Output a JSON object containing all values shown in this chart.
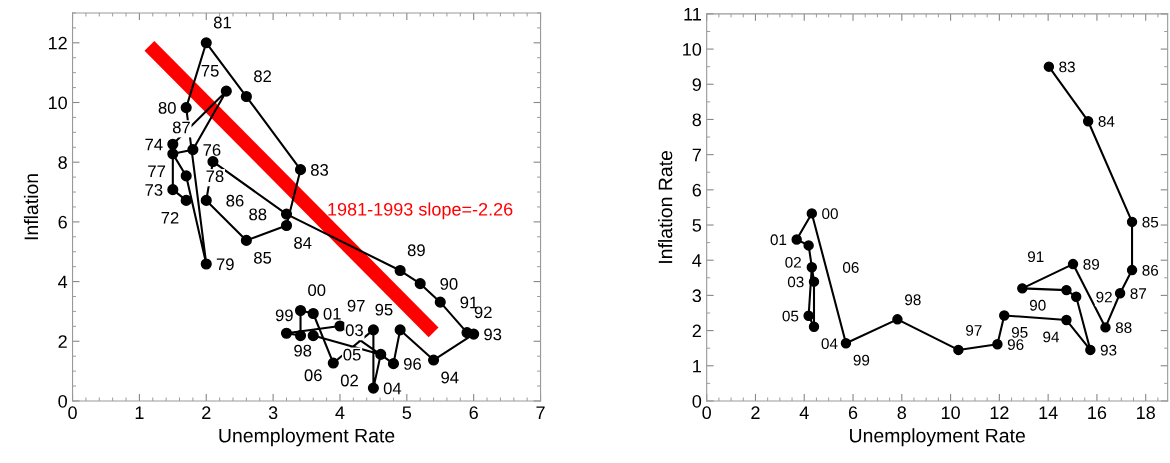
{
  "chart_data": [
    {
      "type": "line",
      "xlabel": "Unemployment Rate",
      "ylabel": "Inflation",
      "xlim": [
        0,
        7
      ],
      "ylim": [
        0,
        13
      ],
      "xticks": [
        0,
        1,
        2,
        3,
        4,
        5,
        6,
        7
      ],
      "yticks": [
        0,
        2,
        4,
        6,
        8,
        10,
        12
      ],
      "grid": false,
      "legend": false,
      "marker": "circle",
      "line_style": "solid",
      "series": [
        {
          "color": "#000000",
          "x": [
            1.7,
            1.5,
            1.5,
            2.3,
            1.8,
            1.5,
            1.7,
            2.0,
            1.7,
            2.0,
            2.6,
            3.41,
            3.2,
            2.6,
            2.0,
            2.1,
            3.2,
            4.9,
            5.2,
            5.5,
            5.9,
            6.0,
            5.4,
            4.9,
            4.8,
            4.0,
            3.2,
            3.41,
            3.41,
            3.6,
            3.9,
            4.5,
            4.5,
            4.61,
            3.6
          ],
          "values": [
            6.72,
            7.08,
            8.6,
            10.38,
            8.42,
            8.28,
            7.54,
            4.59,
            9.83,
            12.0,
            10.2,
            7.75,
            5.88,
            5.38,
            6.72,
            8.02,
            6.26,
            4.37,
            3.93,
            3.31,
            2.29,
            2.24,
            1.37,
            2.38,
            1.25,
            2.51,
            2.27,
            2.19,
            3.03,
            2.93,
            1.27,
            2.38,
            0.43,
            1.56,
            2.19
          ]
        },
        {
          "type": "line",
          "name": "1981-1993 slope=-2.26",
          "color": "#ff0000",
          "marker": "none",
          "x": [
            1.15,
            5.4
          ],
          "values": [
            11.9,
            2.3
          ]
        }
      ],
      "annotations": [
        {
          "text": "72",
          "x": 1.7,
          "y": 6.72
        },
        {
          "text": "73",
          "x": 1.5,
          "y": 7.08
        },
        {
          "text": "74",
          "x": 1.5,
          "y": 8.6
        },
        {
          "text": "75",
          "x": 2.3,
          "y": 10.38
        },
        {
          "text": "76",
          "x": 1.8,
          "y": 8.42
        },
        {
          "text": "77",
          "x": 1.5,
          "y": 8.28
        },
        {
          "text": "78",
          "x": 1.7,
          "y": 7.54
        },
        {
          "text": "79",
          "x": 2.0,
          "y": 4.59
        },
        {
          "text": "80",
          "x": 1.7,
          "y": 9.83
        },
        {
          "text": "81",
          "x": 2.0,
          "y": 12.0
        },
        {
          "text": "82",
          "x": 2.6,
          "y": 10.2
        },
        {
          "text": "83",
          "x": 3.41,
          "y": 7.75
        },
        {
          "text": "84",
          "x": 3.2,
          "y": 5.88
        },
        {
          "text": "85",
          "x": 2.6,
          "y": 5.38
        },
        {
          "text": "86",
          "x": 2.0,
          "y": 6.72
        },
        {
          "text": "87",
          "x": 2.1,
          "y": 8.02
        },
        {
          "text": "88",
          "x": 3.2,
          "y": 6.26
        },
        {
          "text": "89",
          "x": 4.9,
          "y": 4.37
        },
        {
          "text": "90",
          "x": 5.2,
          "y": 3.93
        },
        {
          "text": "91",
          "x": 5.5,
          "y": 3.31
        },
        {
          "text": "92",
          "x": 5.9,
          "y": 2.29
        },
        {
          "text": "93",
          "x": 6.0,
          "y": 2.24
        },
        {
          "text": "94",
          "x": 5.4,
          "y": 1.37
        },
        {
          "text": "95",
          "x": 4.9,
          "y": 2.38
        },
        {
          "text": "96",
          "x": 4.8,
          "y": 1.25
        },
        {
          "text": "97",
          "x": 4.0,
          "y": 2.51
        },
        {
          "text": "98",
          "x": 3.2,
          "y": 2.27
        },
        {
          "text": "99",
          "x": 3.41,
          "y": 2.19
        },
        {
          "text": "00",
          "x": 3.41,
          "y": 3.03
        },
        {
          "text": "01",
          "x": 3.6,
          "y": 2.93
        },
        {
          "text": "02",
          "x": 3.9,
          "y": 1.27
        },
        {
          "text": "03",
          "x": 4.5,
          "y": 2.38
        },
        {
          "text": "04",
          "x": 4.5,
          "y": 0.43
        },
        {
          "text": "05",
          "x": 4.61,
          "y": 1.56
        },
        {
          "text": "06",
          "x": 3.6,
          "y": 2.19
        }
      ]
    },
    {
      "type": "line",
      "xlabel": "Unemployment Rate",
      "ylabel": "Inflation Rate",
      "xlim": [
        0,
        18.9
      ],
      "ylim": [
        0,
        11
      ],
      "xticks": [
        0,
        2,
        4,
        6,
        8,
        10,
        12,
        14,
        16,
        18
      ],
      "yticks": [
        0,
        1,
        2,
        3,
        4,
        5,
        6,
        7,
        8,
        9,
        10,
        11
      ],
      "grid": false,
      "legend": false,
      "marker": "circle",
      "line_style": "solid",
      "series": [
        {
          "color": "#000000",
          "x": [
            14.03,
            15.64,
            17.44,
            17.44,
            16.95,
            16.35,
            15.02,
            12.94,
            14.75,
            15.15,
            15.73,
            14.75,
            12.2,
            11.92,
            10.32,
            7.82,
            5.71,
            4.31,
            3.69,
            4.18,
            4.4,
            4.4,
            4.18,
            4.31
          ],
          "values": [
            9.5,
            7.95,
            5.09,
            3.72,
            3.06,
            2.09,
            3.89,
            3.2,
            3.15,
            2.96,
            1.45,
            2.3,
            2.43,
            1.61,
            1.45,
            2.32,
            1.64,
            5.33,
            4.59,
            4.42,
            3.39,
            2.11,
            2.42,
            3.8
          ]
        }
      ],
      "annotations": [
        {
          "text": "83",
          "x": 14.03,
          "y": 9.5
        },
        {
          "text": "84",
          "x": 15.64,
          "y": 7.95
        },
        {
          "text": "85",
          "x": 17.44,
          "y": 5.09
        },
        {
          "text": "86",
          "x": 17.44,
          "y": 3.72
        },
        {
          "text": "87",
          "x": 16.95,
          "y": 3.06
        },
        {
          "text": "88",
          "x": 16.35,
          "y": 2.09
        },
        {
          "text": "89",
          "x": 15.02,
          "y": 3.89
        },
        {
          "text": "90",
          "x": 12.94,
          "y": 3.2
        },
        {
          "text": "91",
          "x": 14.75,
          "y": 3.15
        },
        {
          "text": "92",
          "x": 15.15,
          "y": 2.96
        },
        {
          "text": "93",
          "x": 15.73,
          "y": 1.45
        },
        {
          "text": "94",
          "x": 14.75,
          "y": 2.3
        },
        {
          "text": "95",
          "x": 12.2,
          "y": 2.43
        },
        {
          "text": "96",
          "x": 11.92,
          "y": 1.61
        },
        {
          "text": "97",
          "x": 10.32,
          "y": 1.45
        },
        {
          "text": "98",
          "x": 7.82,
          "y": 2.32
        },
        {
          "text": "99",
          "x": 5.71,
          "y": 1.64
        },
        {
          "text": "00",
          "x": 4.31,
          "y": 5.33
        },
        {
          "text": "01",
          "x": 3.69,
          "y": 4.59
        },
        {
          "text": "02",
          "x": 4.18,
          "y": 4.42
        },
        {
          "text": "03",
          "x": 4.4,
          "y": 3.39
        },
        {
          "text": "04",
          "x": 4.4,
          "y": 2.11
        },
        {
          "text": "05",
          "x": 4.18,
          "y": 2.42
        },
        {
          "text": "06",
          "x": 4.31,
          "y": 3.8
        }
      ]
    }
  ]
}
